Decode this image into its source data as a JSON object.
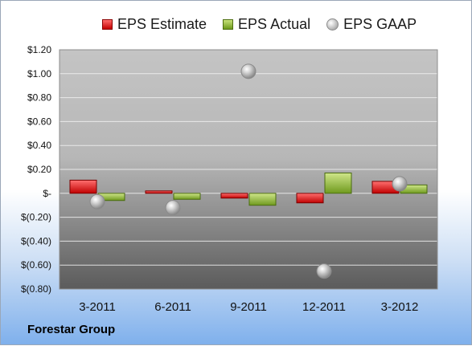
{
  "company": "Forestar Group",
  "legend": {
    "estimate": "EPS Estimate",
    "actual": "EPS Actual",
    "gaap": "EPS GAAP"
  },
  "colors": {
    "estimate": "#c00000",
    "actual": "#77a32a",
    "gaap": "#a6a6a6"
  },
  "chart_data": {
    "type": "bar",
    "categories": [
      "3-2011",
      "6-2011",
      "9-2011",
      "12-2011",
      "3-2012"
    ],
    "ylim": [
      -0.8,
      1.2
    ],
    "yticks": [
      1.2,
      1.0,
      0.8,
      0.6,
      0.4,
      0.2,
      0,
      -0.2,
      -0.4,
      -0.6,
      -0.8
    ],
    "ytick_labels": [
      "$1.20",
      "$1.00",
      "$0.80",
      "$0.60",
      "$0.40",
      "$0.20",
      "$-",
      "$(0.20)",
      "$(0.40)",
      "$(0.60)",
      "$(0.80)"
    ],
    "legend_position": "top",
    "series": [
      {
        "name": "EPS Estimate",
        "type": "bar",
        "values": [
          0.11,
          0.02,
          -0.04,
          -0.08,
          0.1
        ]
      },
      {
        "name": "EPS Actual",
        "type": "bar",
        "values": [
          -0.06,
          -0.05,
          -0.1,
          0.17,
          0.07
        ]
      },
      {
        "name": "EPS GAAP",
        "type": "scatter",
        "values": [
          -0.07,
          -0.12,
          1.02,
          -0.65,
          0.08
        ]
      }
    ]
  }
}
